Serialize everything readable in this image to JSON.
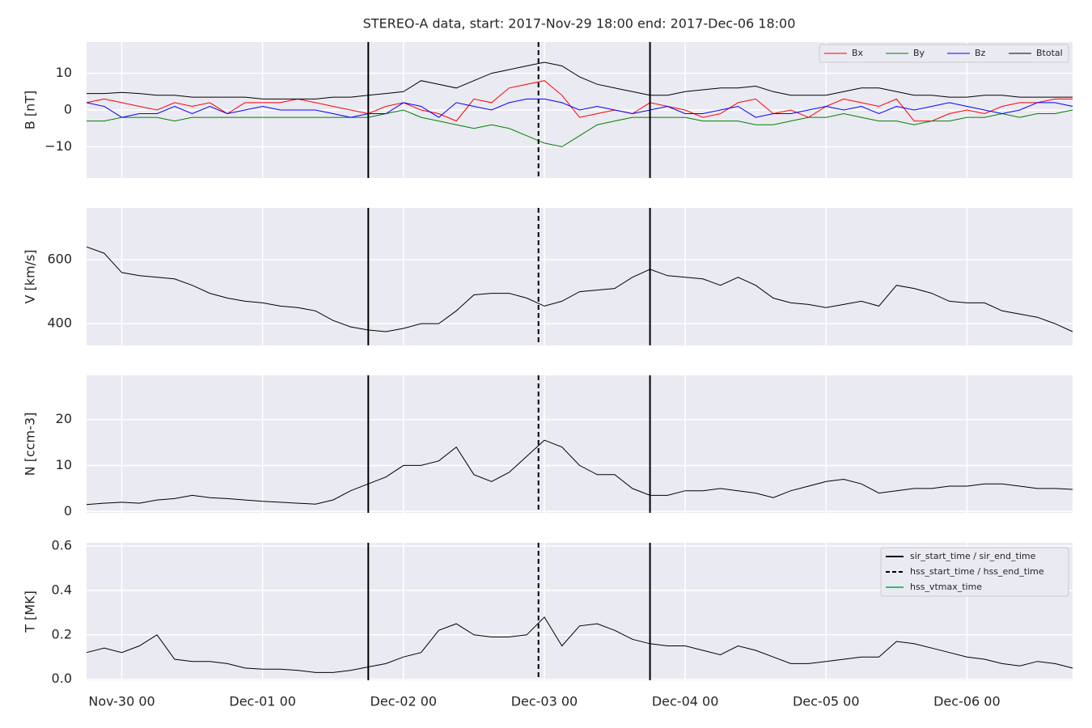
{
  "chart_data": {
    "type": "line",
    "title": "STEREO-A data, start: 2017-Nov-29 18:00  end: 2017-Dec-06 18:00",
    "x": [
      "Nov-29 18",
      "Nov-29 21",
      "Nov-30 00",
      "Nov-30 03",
      "Nov-30 06",
      "Nov-30 09",
      "Nov-30 12",
      "Nov-30 15",
      "Nov-30 18",
      "Nov-30 21",
      "Dec-01 00",
      "Dec-01 03",
      "Dec-01 06",
      "Dec-01 09",
      "Dec-01 12",
      "Dec-01 15",
      "Dec-01 18",
      "Dec-01 21",
      "Dec-02 00",
      "Dec-02 03",
      "Dec-02 06",
      "Dec-02 09",
      "Dec-02 12",
      "Dec-02 15",
      "Dec-02 18",
      "Dec-02 21",
      "Dec-03 00",
      "Dec-03 03",
      "Dec-03 06",
      "Dec-03 09",
      "Dec-03 12",
      "Dec-03 15",
      "Dec-03 18",
      "Dec-03 21",
      "Dec-04 00",
      "Dec-04 03",
      "Dec-04 06",
      "Dec-04 09",
      "Dec-04 12",
      "Dec-04 15",
      "Dec-04 18",
      "Dec-04 21",
      "Dec-05 00",
      "Dec-05 03",
      "Dec-05 06",
      "Dec-05 09",
      "Dec-05 12",
      "Dec-05 15",
      "Dec-05 18",
      "Dec-05 21",
      "Dec-06 00",
      "Dec-06 03",
      "Dec-06 06",
      "Dec-06 09",
      "Dec-06 12",
      "Dec-06 15",
      "Dec-06 18"
    ],
    "xlim": [
      "Nov-29 18",
      "Dec-06 18"
    ],
    "xticks": [
      "Nov-30 00",
      "Dec-01 00",
      "Dec-02 00",
      "Dec-03 00",
      "Dec-04 00",
      "Dec-05 00",
      "Dec-06 00"
    ],
    "grid": true,
    "events": [
      {
        "time": "Dec-01 18",
        "style": "solid"
      },
      {
        "time": "Dec-02 23",
        "style": "dashed"
      },
      {
        "time": "Dec-03 18",
        "style": "solid"
      }
    ],
    "event_legend": [
      {
        "name": "sir_start_time / sir_end_time",
        "color": "#000000",
        "style": "solid"
      },
      {
        "name": "hss_start_time / hss_end_time",
        "color": "#000000",
        "style": "dashed"
      },
      {
        "name": "hss_vtmax_time",
        "color": "#3cb96a",
        "style": "solid"
      }
    ],
    "panels": [
      {
        "ylabel": "B [nT]",
        "ylim": [
          -18.5,
          18.5
        ],
        "yticks": [
          {
            "value": -10,
            "label": "−10"
          },
          0,
          10
        ],
        "legend": "upper right",
        "series": [
          {
            "name": "Bx",
            "color": "#ff0000",
            "values": [
              2,
              3,
              2,
              1,
              0,
              2,
              1,
              2,
              -1,
              2,
              2,
              2,
              3,
              2,
              1,
              0,
              -1,
              1,
              2,
              0,
              -1,
              -3,
              3,
              2,
              6,
              7,
              8,
              4,
              -2,
              -1,
              0,
              -1,
              2,
              1,
              0,
              -2,
              -1,
              2,
              3,
              -1,
              0,
              -2,
              1,
              3,
              2,
              1,
              3,
              -3,
              -3,
              -1,
              0,
              -1,
              1,
              2,
              2,
              3,
              3
            ]
          },
          {
            "name": "By",
            "color": "#008000",
            "values": [
              -3,
              -3,
              -2,
              -2,
              -2,
              -3,
              -2,
              -2,
              -2,
              -2,
              -2,
              -2,
              -2,
              -2,
              -2,
              -2,
              -2,
              -1,
              0,
              -2,
              -3,
              -4,
              -5,
              -4,
              -5,
              -7,
              -9,
              -10,
              -7,
              -4,
              -3,
              -2,
              -2,
              -2,
              -2,
              -3,
              -3,
              -3,
              -4,
              -4,
              -3,
              -2,
              -2,
              -1,
              -2,
              -3,
              -3,
              -4,
              -3,
              -3,
              -2,
              -2,
              -1,
              -2,
              -1,
              -1,
              0
            ]
          },
          {
            "name": "Bz",
            "color": "#0000ff",
            "values": [
              2,
              1,
              -2,
              -1,
              -1,
              1,
              -1,
              1,
              -1,
              0,
              1,
              0,
              0,
              0,
              -1,
              -2,
              -1,
              -1,
              2,
              1,
              -2,
              2,
              1,
              0,
              2,
              3,
              3,
              2,
              0,
              1,
              0,
              -1,
              0,
              1,
              -1,
              -1,
              0,
              1,
              -2,
              -1,
              -1,
              0,
              1,
              0,
              1,
              -1,
              1,
              0,
              1,
              2,
              1,
              0,
              -1,
              0,
              2,
              2,
              1
            ]
          },
          {
            "name": "Btotal",
            "color": "#000000",
            "values": [
              4.5,
              4.5,
              4.8,
              4.5,
              4,
              4,
              3.5,
              3.5,
              3.5,
              3.5,
              3,
              3,
              3,
              3,
              3.5,
              3.5,
              4,
              4.5,
              5,
              8,
              7,
              6,
              8,
              10,
              11,
              12,
              13,
              12,
              9,
              7,
              6,
              5,
              4,
              4,
              5,
              5.5,
              6,
              6,
              6.5,
              5,
              4,
              4,
              4,
              5,
              6,
              6,
              5,
              4,
              4,
              3.5,
              3.5,
              4,
              4,
              3.5,
              3.5,
              3.5,
              3.5
            ]
          }
        ]
      },
      {
        "ylabel": "V [km/s]",
        "ylim": [
          332,
          762
        ],
        "yticks": [
          400,
          600
        ],
        "series": [
          {
            "color": "#000000",
            "values": [
              640,
              620,
              560,
              550,
              545,
              540,
              520,
              495,
              480,
              470,
              465,
              455,
              450,
              440,
              410,
              390,
              380,
              375,
              385,
              400,
              400,
              440,
              490,
              495,
              495,
              480,
              455,
              470,
              500,
              505,
              510,
              545,
              570,
              550,
              545,
              540,
              520,
              545,
              520,
              480,
              465,
              460,
              450,
              460,
              470,
              455,
              520,
              510,
              495,
              470,
              465,
              465,
              440,
              430,
              420,
              400,
              375
            ]
          }
        ]
      },
      {
        "ylabel": "N [ccm-3]",
        "ylim": [
          -0.3,
          29.6
        ],
        "yticks": [
          0,
          10,
          20
        ],
        "series": [
          {
            "color": "#000000",
            "values": [
              1.5,
              1.8,
              2,
              1.8,
              2.5,
              2.8,
              3.5,
              3,
              2.8,
              2.5,
              2.2,
              2,
              1.8,
              1.6,
              2.5,
              4.5,
              6,
              7.5,
              10,
              10,
              11,
              14,
              8,
              6.5,
              8.5,
              12,
              15.5,
              14,
              10,
              8,
              8,
              5,
              3.5,
              3.5,
              4.5,
              4.5,
              5,
              4.5,
              4,
              3,
              4.5,
              5.5,
              6.5,
              7,
              6,
              4,
              4.5,
              5,
              5,
              5.5,
              5.5,
              6,
              6,
              5.5,
              5,
              5,
              4.8
            ]
          }
        ]
      },
      {
        "ylabel": "T [MK]",
        "ylim": [
          -0.005,
          0.615
        ],
        "yticks": [
          {
            "value": 0,
            "label": "0.0"
          },
          0.2,
          0.4,
          0.6
        ],
        "event_legend": "upper right",
        "series": [
          {
            "color": "#000000",
            "values": [
              0.12,
              0.14,
              0.12,
              0.15,
              0.2,
              0.09,
              0.08,
              0.08,
              0.07,
              0.05,
              0.045,
              0.045,
              0.04,
              0.03,
              0.03,
              0.04,
              0.055,
              0.07,
              0.1,
              0.12,
              0.22,
              0.25,
              0.2,
              0.19,
              0.19,
              0.2,
              0.28,
              0.15,
              0.24,
              0.25,
              0.22,
              0.18,
              0.16,
              0.15,
              0.15,
              0.13,
              0.11,
              0.15,
              0.13,
              0.1,
              0.07,
              0.07,
              0.08,
              0.09,
              0.1,
              0.1,
              0.17,
              0.16,
              0.14,
              0.12,
              0.1,
              0.09,
              0.07,
              0.06,
              0.08,
              0.07,
              0.05
            ]
          }
        ]
      }
    ]
  }
}
